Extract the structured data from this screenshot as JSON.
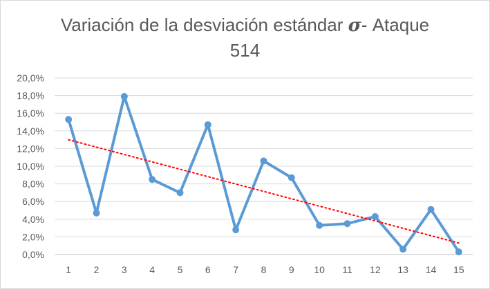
{
  "chart_data": {
    "type": "line",
    "title_line1_before": "Variación de la desviación estándar ",
    "title_symbol": "σ",
    "title_line1_after": "- Ataque",
    "title_line2": "514",
    "categories": [
      "1",
      "2",
      "3",
      "4",
      "5",
      "6",
      "7",
      "8",
      "9",
      "10",
      "11",
      "12",
      "13",
      "14",
      "15"
    ],
    "y_tick_labels": [
      "0,0%",
      "2,0%",
      "4,0%",
      "6,0%",
      "8,0%",
      "10,0%",
      "12,0%",
      "14,0%",
      "16,0%",
      "18,0%",
      "20,0%"
    ],
    "ylim": [
      0,
      20
    ],
    "grid": true,
    "legend": "none",
    "series": [
      {
        "values": [
          15.3,
          4.7,
          17.9,
          8.5,
          7.0,
          14.7,
          2.8,
          10.6,
          8.7,
          3.3,
          3.5,
          4.3,
          0.6,
          5.1,
          0.3
        ],
        "color": "#5b9bd5",
        "marker": "circle"
      }
    ],
    "trendline": {
      "type": "linear",
      "start": 13.0,
      "end": 1.3,
      "color": "#ff0000",
      "style": "dotted"
    }
  }
}
